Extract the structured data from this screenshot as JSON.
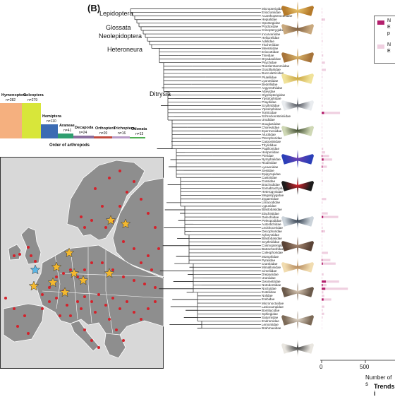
{
  "panel_label": "(B)",
  "tree_labels": [
    "Lepidoptera",
    "Glossata",
    "Neolepidoptera",
    "Heteroneura",
    "Ditrysia"
  ],
  "families": [
    "Micropterigidae",
    "Eriocraniidae",
    "Acanthopteroctetidae",
    "Hepialidae",
    "Opostegidae",
    "Prodoxidae",
    "Crinopterygidae",
    "Incurvariidae",
    "Heliozelidae",
    "Adelidae",
    "Tischeriidae",
    "Meessiidae",
    "Eriocottidae",
    "Tineidae",
    "Dryadaulidae",
    "Psychidae",
    "Roeslerstammiidae",
    "Gracillariidae",
    "Bucculatricidae",
    "Plutellidae",
    "Lyonetiidae",
    "Bedelliidae",
    "Argyresthiidae",
    "Attevidae",
    "Glyphipterigidae",
    "Ypsolophidae",
    "Praydidae",
    "Scythrididae",
    "Ypsolophidae",
    "Tortricidae",
    "Schreckensteiniidae",
    "Urodidae",
    "Douglasiidae",
    "Choreutidae",
    "Epermeniidae",
    "Alucitidae",
    "Pterophoridae",
    "Carposinidae",
    "Thyrididae",
    "Papilionidae",
    "Hesperiidae",
    "Pieridae",
    "Nymphalidae",
    "Riodinidae",
    "Lycaenidae",
    "Sesiidae",
    "Epipyropidae",
    "Castniidae",
    "Cossidae",
    "Brachodidae",
    "Somabrachyidae",
    "Heterogynidae",
    "Megalopygidae",
    "Zygaenidae",
    "Limacodidae",
    "Lypusidae",
    "Blastobasidae",
    "Elachistidae",
    "Gelechiidae",
    "Peleopodidae",
    "Autostichidae",
    "Lecithoceridae",
    "Oecophoridae",
    "Xyloryctidae",
    "Blastobasidae",
    "Scythrididae",
    "Cosmopterigidae",
    "Batrachedridae",
    "Coleophoridae",
    "Momphidae",
    "Pyralidae",
    "Crambidae",
    "Mimallonidae",
    "Cimeliidae",
    "Drepanidae",
    "Uraniidae",
    "Geometridae",
    "Notodontidae",
    "Noctuidae",
    "Euteliidae",
    "Nolidae",
    "Erebidae",
    "Micronoctuidae",
    "Lasiocampidae",
    "Bombycidae",
    "Sphingidae",
    "Saturniidae",
    "Endromidae",
    "Lemoniidae",
    "Brahmaeidae"
  ],
  "bars_light": [
    5,
    8,
    4,
    40,
    6,
    5,
    3,
    8,
    5,
    12,
    4,
    3,
    6,
    18,
    5,
    38,
    5,
    48,
    7,
    10,
    6,
    4,
    10,
    5,
    6,
    3,
    5,
    12,
    4,
    210,
    4,
    3,
    5,
    8,
    6,
    7,
    10,
    3,
    4,
    18,
    40,
    85,
    120,
    22,
    60,
    15,
    3,
    4,
    14,
    4,
    2,
    5,
    3,
    52,
    10,
    3,
    4,
    70,
    190,
    4,
    8,
    12,
    40,
    4,
    5,
    6,
    10,
    4,
    72,
    8,
    100,
    160,
    3,
    2,
    22,
    6,
    200,
    55,
    300,
    20,
    30,
    110,
    4,
    30,
    12,
    28,
    12,
    4,
    3,
    4
  ],
  "bars_dark": [
    0,
    0,
    0,
    2,
    0,
    0,
    0,
    0,
    0,
    0,
    0,
    0,
    0,
    0,
    0,
    0,
    0,
    0,
    0,
    0,
    0,
    0,
    0,
    0,
    0,
    0,
    0,
    0,
    0,
    28,
    0,
    0,
    0,
    0,
    0,
    0,
    0,
    0,
    0,
    0,
    0,
    8,
    22,
    0,
    10,
    0,
    0,
    0,
    0,
    0,
    0,
    0,
    0,
    0,
    0,
    0,
    0,
    0,
    18,
    0,
    0,
    0,
    4,
    0,
    0,
    0,
    0,
    0,
    0,
    0,
    8,
    14,
    0,
    0,
    0,
    0,
    48,
    12,
    42,
    0,
    0,
    22,
    0,
    0,
    0,
    0,
    0,
    0,
    0,
    0
  ],
  "axis": {
    "tick": "500",
    "zero": "0",
    "xlabel": "Number of s",
    "footer": "Trends i"
  },
  "legend": {
    "entry1": "N\nE\np",
    "entry2": "N\nE"
  },
  "colors": {
    "light_bar": "#efcfe0",
    "dark_bar": "#b4206d"
  },
  "orders_title": "Order of arthropods",
  "orders": [
    {
      "name": "Hymenoptera",
      "n": "n=282",
      "color": "#f5b07f",
      "height": 1.0
    },
    {
      "name": "Coleoptera",
      "n": "n=279",
      "color": "#d8e63a",
      "height": 1.0
    },
    {
      "name": "Hemiptera",
      "n": "n=110",
      "color": "#3b6bb3",
      "height": 0.4
    },
    {
      "name": "Araneae",
      "n": "n=41",
      "color": "#2e9e6f",
      "height": 0.15
    },
    {
      "name": "Decapoda",
      "n": "n=24",
      "color": "#8a6e9e",
      "height": 0.09
    },
    {
      "name": "Orthoptera",
      "n": "n=20",
      "color": "#c04a3e",
      "height": 0.07
    },
    {
      "name": "Trichoptera",
      "n": "n=16",
      "color": "#b89bc7",
      "height": 0.06
    },
    {
      "name": "Odonata",
      "n": "n=13",
      "color": "#4fae52",
      "height": 0.05
    }
  ]
}
